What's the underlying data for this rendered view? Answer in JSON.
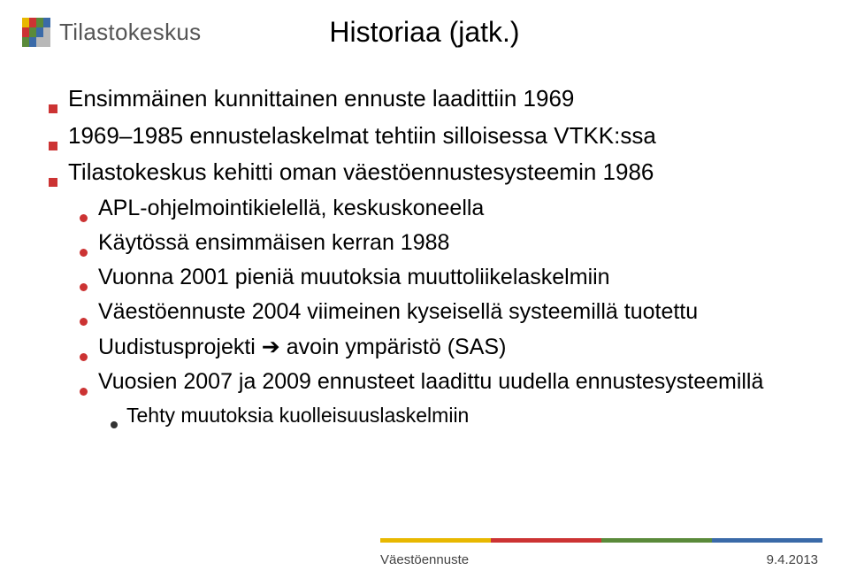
{
  "brand": "Tilastokeskus",
  "title": "Historiaa   (jatk.)",
  "colors": {
    "bullet_square": "#cc3333",
    "bullet_dot": "#cc3333",
    "bullet_dot_dark": "#333333",
    "text": "#000000",
    "brand_text": "#555555",
    "footer_text": "#444444",
    "logo": {
      "yellow": "#e8b800",
      "red": "#cc3333",
      "green": "#5a8a3a",
      "blue": "#3a6aa8",
      "gray": "#b8b8b8"
    },
    "footer_line": [
      "#e8b800",
      "#cc3333",
      "#5a8a3a",
      "#3a6aa8"
    ]
  },
  "bullets_l1": [
    "Ensimmäinen kunnittainen ennuste laadittiin 1969",
    "1969–1985 ennustelaskelmat tehtiin silloisessa VTKK:ssa",
    "Tilastokeskus kehitti oman väestöennustesysteemin 1986"
  ],
  "bullets_l2_a": [
    "APL-ohjelmointikielellä, keskuskoneella",
    "Käytössä ensimmäisen kerran 1988",
    "Vuonna 2001 pieniä muutoksia muuttoliikelaskelmiin",
    "Väestöennuste 2004 viimeinen kyseisellä systeemillä tuotettu",
    "Uudistusprojekti ➔ avoin ympäristö (SAS)",
    "Vuosien 2007 ja 2009 ennusteet laadittu uudella ennustesysteemillä"
  ],
  "bullets_l3": [
    "Tehty muutoksia kuolleisuuslaskelmiin"
  ],
  "footer": {
    "left": "Väestöennuste",
    "right": "9.4.2013"
  },
  "typography": {
    "title_fontsize": 32,
    "l1_fontsize": 26,
    "l2_fontsize": 25,
    "l3_fontsize": 23,
    "brand_fontsize": 26,
    "footer_fontsize": 15
  }
}
